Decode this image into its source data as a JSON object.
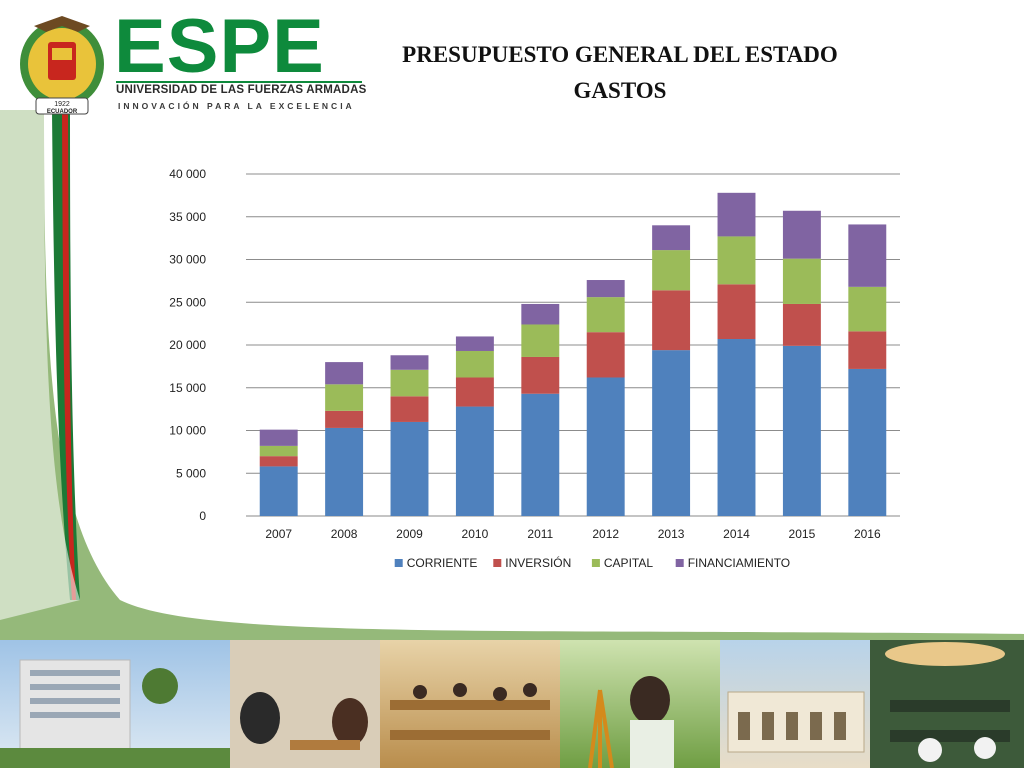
{
  "header": {
    "logo_text": "ESPE",
    "logo_subtitle": "UNIVERSIDAD DE LAS FUERZAS ARMADAS",
    "logo_motto": "INNOVACIÓN PARA LA EXCELENCIA",
    "emblem_year": "1922",
    "emblem_country": "ECUADOR",
    "title_line1": "PRESUPUESTO GENERAL DEL ESTADO",
    "title_line2": "GASTOS"
  },
  "colors": {
    "brand_green": "#0e8a3c",
    "side_green": "#8fb573",
    "side_red": "#c8261e",
    "corriente": "#4f81bd",
    "inversion": "#c0504d",
    "capital": "#9bbb59",
    "financiamiento": "#8064a2"
  },
  "chart_data": {
    "type": "bar",
    "stacked": true,
    "categories": [
      "2007",
      "2008",
      "2009",
      "2010",
      "2011",
      "2012",
      "2013",
      "2014",
      "2015",
      "2016"
    ],
    "series": [
      {
        "name": "CORRIENTE",
        "values": [
          5800,
          10300,
          11000,
          12800,
          14300,
          16200,
          19400,
          20700,
          19900,
          17200
        ]
      },
      {
        "name": "INVERSIÓN",
        "values": [
          1200,
          2000,
          3000,
          3400,
          4300,
          5300,
          7000,
          6400,
          4900,
          4400
        ]
      },
      {
        "name": "CAPITAL",
        "values": [
          1200,
          3100,
          3100,
          3100,
          3800,
          4100,
          4700,
          5600,
          5300,
          5200
        ]
      },
      {
        "name": "FINANCIAMIENTO",
        "values": [
          1900,
          2600,
          1700,
          1700,
          2400,
          2000,
          2900,
          5100,
          5600,
          7300
        ]
      }
    ],
    "title": "",
    "xlabel": "",
    "ylabel": "",
    "ylim": [
      0,
      40000
    ],
    "yticks": [
      0,
      5000,
      10000,
      15000,
      20000,
      25000,
      30000,
      35000,
      40000
    ],
    "ytick_labels": [
      "0",
      "5 000",
      "10 000",
      "15 000",
      "20 000",
      "25 000",
      "30 000",
      "35 000",
      "40 000"
    ],
    "grid": true,
    "legend_position": "bottom"
  }
}
